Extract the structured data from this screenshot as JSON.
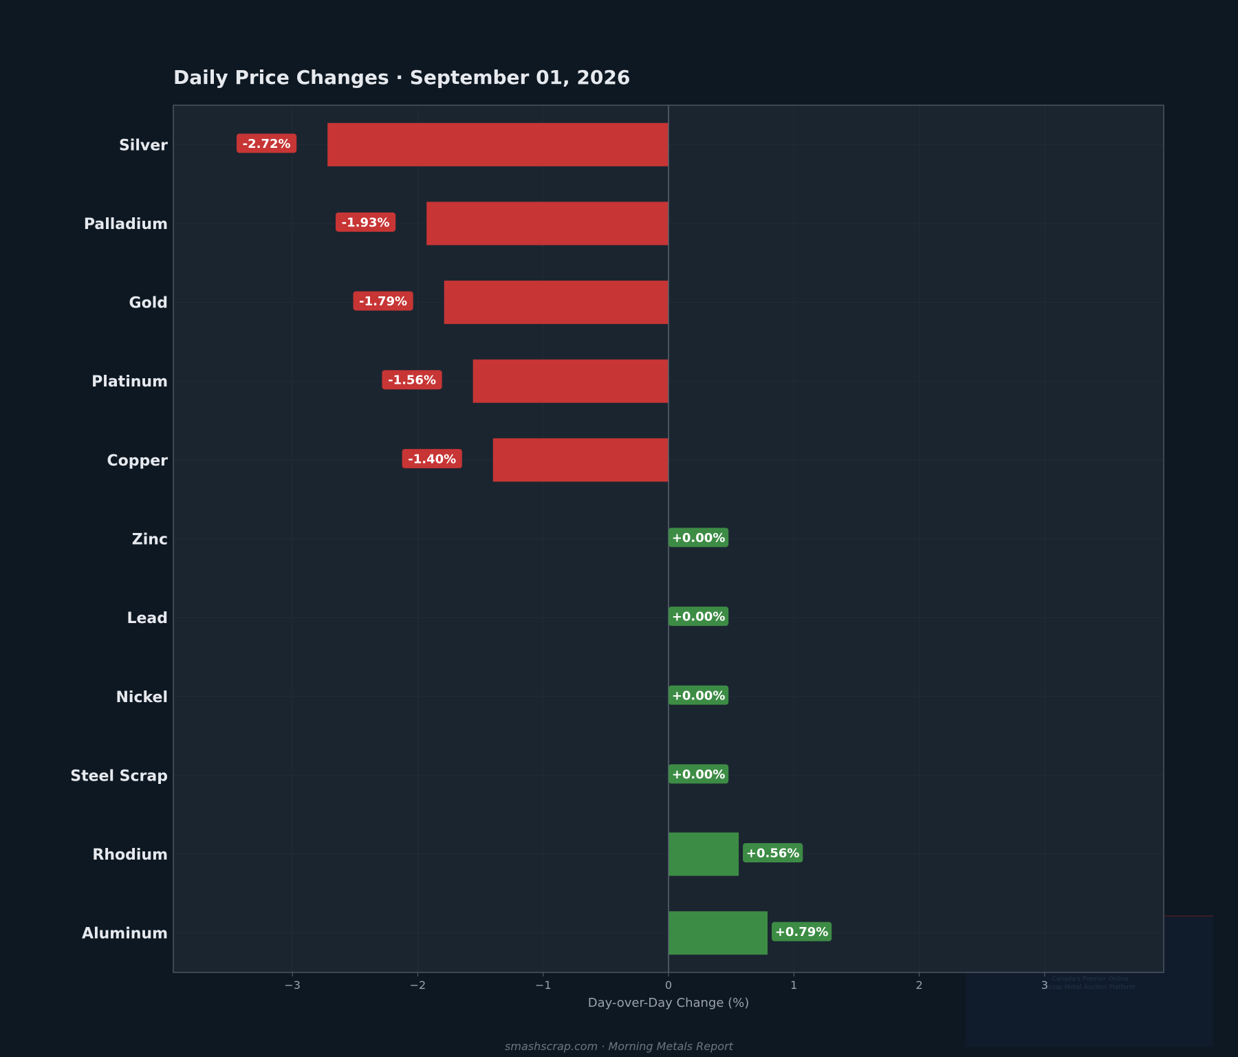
{
  "chart_data": {
    "type": "bar",
    "orientation": "horizontal",
    "title": "Daily Price Changes  ·  September 01, 2026",
    "xlabel": "Day-over-Day Change (%)",
    "ylabel": "",
    "categories": [
      "Silver",
      "Palladium",
      "Gold",
      "Platinum",
      "Copper",
      "Zinc",
      "Lead",
      "Nickel",
      "Steel Scrap",
      "Rhodium",
      "Aluminum"
    ],
    "values": [
      -2.72,
      -1.93,
      -1.79,
      -1.56,
      -1.4,
      0.0,
      0.0,
      0.0,
      0.0,
      0.56,
      0.79
    ],
    "data_labels": [
      "-2.72%",
      "-1.93%",
      "-1.79%",
      "-1.56%",
      "-1.40%",
      "+0.00%",
      "+0.00%",
      "+0.00%",
      "+0.00%",
      "+0.56%",
      "+0.79%"
    ],
    "xlim": [
      -3.95,
      3.95
    ],
    "xticks": [
      -3,
      -2,
      -1,
      0,
      1,
      2,
      3
    ],
    "xtick_labels": [
      "−3",
      "−2",
      "−1",
      "0",
      "1",
      "2",
      "3"
    ],
    "grid": true,
    "colors": {
      "negative": "#c73535",
      "positive": "#3d8c45",
      "background": "#0e1822",
      "plot_background": "#1b2530",
      "spine": "#4a5563"
    }
  },
  "footer": {
    "text": "smashscrap.com  ·  Morning Metals Report"
  },
  "watermark": {
    "line1": "Canada's Premier Online",
    "line2": "Scrap Metal Auction Platform"
  }
}
